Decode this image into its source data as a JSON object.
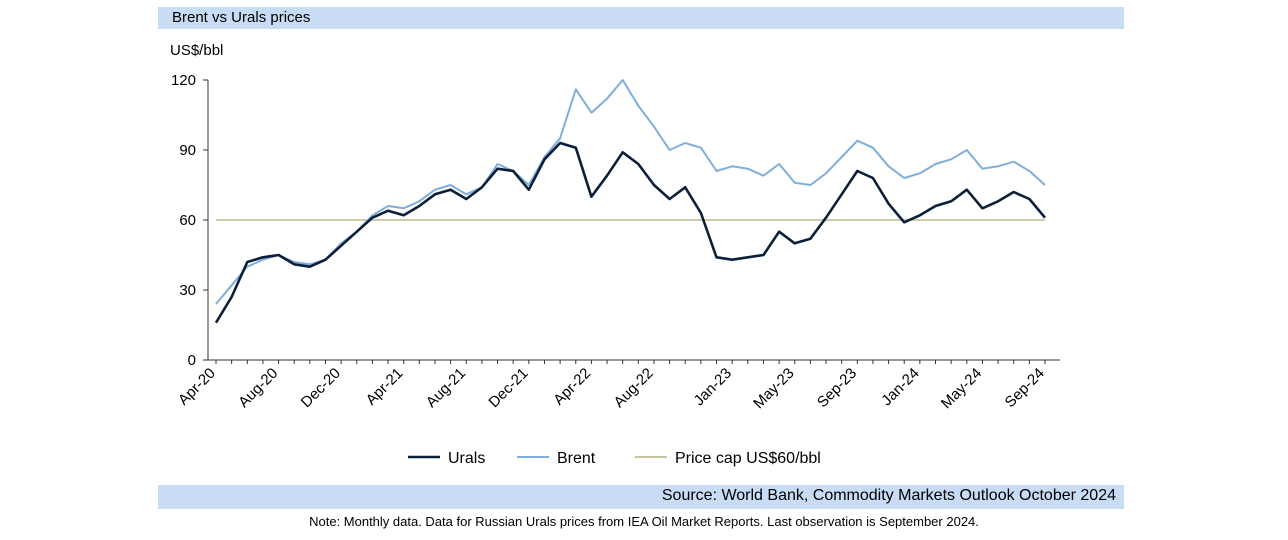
{
  "header": {
    "title": "Brent vs Urals prices"
  },
  "footer": {
    "source": "Source: World Bank, Commodity Markets Outlook October 2024",
    "note": "Note: Monthly data. Data for Russian Urals prices from IEA Oil Market Reports. Last observation is September 2024."
  },
  "chart_data": {
    "type": "line",
    "ylabel": "US$/bbl",
    "ylim": [
      0,
      120
    ],
    "yticks": [
      0,
      30,
      60,
      90,
      120
    ],
    "xlabels": [
      "Apr-20",
      "Aug-20",
      "Dec-20",
      "Apr-21",
      "Aug-21",
      "Dec-21",
      "Apr-22",
      "Aug-22",
      "Jan-23",
      "May-23",
      "Sep-23",
      "Jan-24",
      "May-24",
      "Sep-24"
    ],
    "x": [
      "Apr-20",
      "May-20",
      "Jun-20",
      "Jul-20",
      "Aug-20",
      "Sep-20",
      "Oct-20",
      "Nov-20",
      "Dec-20",
      "Jan-21",
      "Feb-21",
      "Mar-21",
      "Apr-21",
      "May-21",
      "Jun-21",
      "Jul-21",
      "Aug-21",
      "Sep-21",
      "Oct-21",
      "Nov-21",
      "Dec-21",
      "Jan-22",
      "Feb-22",
      "Mar-22",
      "Apr-22",
      "May-22",
      "Jun-22",
      "Jul-22",
      "Aug-22",
      "Sep-22",
      "Oct-22",
      "Nov-22",
      "Dec-22",
      "Jan-23",
      "Feb-23",
      "Mar-23",
      "Apr-23",
      "May-23",
      "Jun-23",
      "Jul-23",
      "Aug-23",
      "Sep-23",
      "Oct-23",
      "Nov-23",
      "Dec-23",
      "Jan-24",
      "Feb-24",
      "Mar-24",
      "Apr-24",
      "May-24",
      "Jun-24",
      "Jul-24",
      "Aug-24",
      "Sep-24"
    ],
    "series": [
      {
        "name": "Urals",
        "color": "#0b1f3a",
        "values": [
          16,
          27,
          42,
          44,
          45,
          41,
          40,
          43,
          49,
          55,
          61,
          64,
          62,
          66,
          71,
          73,
          69,
          74,
          82,
          81,
          73,
          86,
          93,
          91,
          70,
          79,
          89,
          84,
          75,
          69,
          74,
          63,
          44,
          43,
          44,
          45,
          55,
          50,
          52,
          61,
          71,
          81,
          78,
          67,
          59,
          62,
          66,
          68,
          73,
          65,
          68,
          72,
          69,
          61
        ]
      },
      {
        "name": "Brent",
        "color": "#80aedc",
        "values": [
          24,
          32,
          40,
          43,
          45,
          42,
          41,
          43,
          50,
          55,
          62,
          66,
          65,
          68,
          73,
          75,
          71,
          74,
          84,
          81,
          75,
          87,
          95,
          116,
          106,
          112,
          120,
          109,
          100,
          90,
          93,
          91,
          81,
          83,
          82,
          79,
          84,
          76,
          75,
          80,
          87,
          94,
          91,
          83,
          78,
          80,
          84,
          86,
          90,
          82,
          83,
          85,
          81,
          75
        ]
      },
      {
        "name": "Price cap US$60/bbl",
        "color": "#c8c4a0",
        "values": [
          60,
          60,
          60,
          60,
          60,
          60,
          60,
          60,
          60,
          60,
          60,
          60,
          60,
          60,
          60,
          60,
          60,
          60,
          60,
          60,
          60,
          60,
          60,
          60,
          60,
          60,
          60,
          60,
          60,
          60,
          60,
          60,
          60,
          60,
          60,
          60,
          60,
          60,
          60,
          60,
          60,
          60,
          60,
          60,
          60,
          60,
          60,
          60,
          60,
          60,
          60,
          60,
          60,
          60
        ]
      }
    ],
    "legend": "bottom",
    "grid": false
  }
}
